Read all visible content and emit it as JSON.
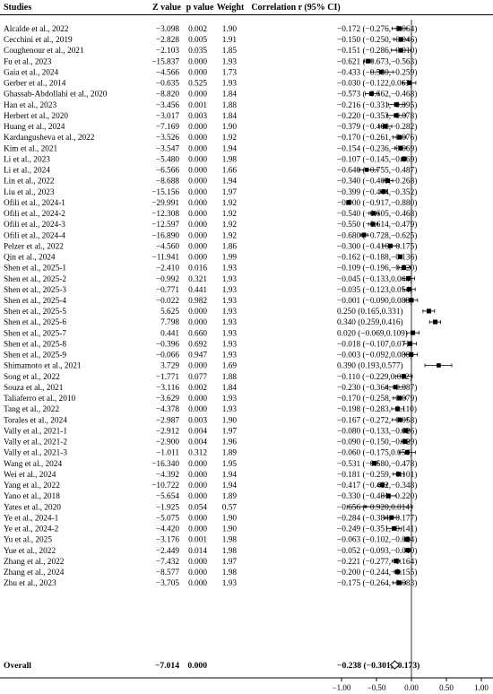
{
  "headers": {
    "studies": "Studies",
    "z": "Z value",
    "p": "p value",
    "weight": "Weight",
    "ci": "Correlation r (95% CI)"
  },
  "chart_data": {
    "type": "forest",
    "xlabel": "",
    "xlim": [
      -1.0,
      1.0
    ],
    "xticks": [
      "-1.00",
      "-0.50",
      "0.00",
      "0.50",
      "1.00"
    ],
    "xtick_values": [
      -1.0,
      -0.5,
      0.0,
      0.5,
      1.0
    ],
    "reference_line": 0,
    "grid": false,
    "studies": [
      {
        "name": "Alcalde et al., 2022",
        "z": "-3.098",
        "p": "0.002",
        "w": "1.90",
        "r": -0.172,
        "lo": -0.276,
        "hi": -0.064
      },
      {
        "name": "Cecchini et al., 2019",
        "z": "-2.828",
        "p": "0.005",
        "w": "1.91",
        "r": -0.15,
        "lo": -0.25,
        "hi": -0.046
      },
      {
        "name": "Coughenour et al., 2021",
        "z": "-2.103",
        "p": "0.035",
        "w": "1.85",
        "r": -0.151,
        "lo": -0.286,
        "hi": -0.01
      },
      {
        "name": "Fu et al., 2023",
        "z": "-15.837",
        "p": "0.000",
        "w": "1.93",
        "r": -0.621,
        "lo": -0.673,
        "hi": -0.563
      },
      {
        "name": "Gaia et al., 2024",
        "z": "-4.566",
        "p": "0.000",
        "w": "1.73",
        "r": -0.433,
        "lo": -0.58,
        "hi": -0.259
      },
      {
        "name": "Gerber et al., 2014",
        "z": "-0.635",
        "p": "0.525",
        "w": "1.93",
        "r": -0.03,
        "lo": -0.122,
        "hi": 0.063
      },
      {
        "name": "Ghassab-Abdollahi et al., 2020",
        "z": "-8.820",
        "p": "0.000",
        "w": "1.84",
        "r": -0.573,
        "lo": -0.662,
        "hi": -0.468
      },
      {
        "name": "Han et al., 2023",
        "z": "-3.456",
        "p": "0.001",
        "w": "1.88",
        "r": -0.216,
        "lo": -0.331,
        "hi": -0.095
      },
      {
        "name": "Herbert et al., 2020",
        "z": "-3.017",
        "p": "0.003",
        "w": "1.84",
        "r": -0.22,
        "lo": -0.353,
        "hi": -0.078
      },
      {
        "name": "Huang et al., 2024",
        "z": "-7.169",
        "p": "0.000",
        "w": "1.90",
        "r": -0.379,
        "lo": -0.468,
        "hi": -0.282
      },
      {
        "name": "Kardangusheva et al., 2022",
        "z": "-3.526",
        "p": "0.000",
        "w": "1.92",
        "r": -0.17,
        "lo": -0.261,
        "hi": -0.076
      },
      {
        "name": "Kim et al., 2021",
        "z": "-3.547",
        "p": "0.000",
        "w": "1.94",
        "r": -0.154,
        "lo": -0.236,
        "hi": -0.069
      },
      {
        "name": "Li et al., 2023",
        "z": "-5.480",
        "p": "0.000",
        "w": "1.98",
        "r": -0.107,
        "lo": -0.145,
        "hi": -0.069
      },
      {
        "name": "Li et al., 2024",
        "z": "-6.566",
        "p": "0.000",
        "w": "1.66",
        "r": -0.64,
        "lo": -0.755,
        "hi": -0.487
      },
      {
        "name": "Lin et al., 2022",
        "z": "-8.688",
        "p": "0.000",
        "w": "1.94",
        "r": -0.34,
        "lo": -0.409,
        "hi": -0.268
      },
      {
        "name": "Liu et al., 2023",
        "z": "-15.156",
        "p": "0.000",
        "w": "1.97",
        "r": -0.399,
        "lo": -0.444,
        "hi": -0.352
      },
      {
        "name": "Ofili et al., 2024-1",
        "z": "-29.991",
        "p": "0.000",
        "w": "1.92",
        "r": -0.9,
        "lo": -0.917,
        "hi": -0.88
      },
      {
        "name": "Ofili et al., 2024-2",
        "z": "-12.308",
        "p": "0.000",
        "w": "1.92",
        "r": -0.54,
        "lo": -0.605,
        "hi": -0.468
      },
      {
        "name": "Ofili et al., 2024-3",
        "z": "-12.597",
        "p": "0.000",
        "w": "1.92",
        "r": -0.55,
        "lo": -0.614,
        "hi": -0.479
      },
      {
        "name": "Ofili et al., 2024-4",
        "z": "-16.890",
        "p": "0.000",
        "w": "1.92",
        "r": -0.68,
        "lo": -0.728,
        "hi": -0.625
      },
      {
        "name": "Pelzer et al., 2022",
        "z": "-4.560",
        "p": "0.000",
        "w": "1.86",
        "r": -0.3,
        "lo": -0.416,
        "hi": -0.175
      },
      {
        "name": "Qin et al., 2024",
        "z": "-11.941",
        "p": "0.000",
        "w": "1.99",
        "r": -0.162,
        "lo": -0.188,
        "hi": -0.136
      },
      {
        "name": "Shen et al., 2025-1",
        "z": "-2.410",
        "p": "0.016",
        "w": "1.93",
        "r": -0.109,
        "lo": -0.196,
        "hi": -0.02
      },
      {
        "name": "Shen et al., 2025-2",
        "z": "-0.992",
        "p": "0.321",
        "w": "1.93",
        "r": -0.045,
        "lo": -0.133,
        "hi": 0.044
      },
      {
        "name": "Shen et al., 2025-3",
        "z": "-0.771",
        "p": "0.441",
        "w": "1.93",
        "r": -0.035,
        "lo": -0.123,
        "hi": 0.054
      },
      {
        "name": "Shen et al., 2025-4",
        "z": "-0.022",
        "p": "0.982",
        "w": "1.93",
        "r": -0.001,
        "lo": -0.09,
        "hi": 0.088
      },
      {
        "name": "Shen et al., 2025-5",
        "z": "5.625",
        "p": "0.000",
        "w": "1.93",
        "r": 0.25,
        "lo": 0.165,
        "hi": 0.331
      },
      {
        "name": "Shen et al., 2025-6",
        "z": "7.798",
        "p": "0.000",
        "w": "1.93",
        "r": 0.34,
        "lo": 0.259,
        "hi": 0.416
      },
      {
        "name": "Shen et al., 2025-7",
        "z": "0.441",
        "p": "0.660",
        "w": "1.93",
        "r": 0.02,
        "lo": -0.069,
        "hi": 0.109
      },
      {
        "name": "Shen et al., 2025-8",
        "z": "-0.396",
        "p": "0.692",
        "w": "1.93",
        "r": -0.018,
        "lo": -0.107,
        "hi": 0.071
      },
      {
        "name": "Shen et al., 2025-9",
        "z": "-0.066",
        "p": "0.947",
        "w": "1.93",
        "r": -0.003,
        "lo": -0.092,
        "hi": 0.086
      },
      {
        "name": "Shimamoto et al., 2021",
        "z": "3.729",
        "p": "0.000",
        "w": "1.69",
        "r": 0.39,
        "lo": 0.193,
        "hi": 0.577
      },
      {
        "name": "Song et al., 2022",
        "z": "-1.771",
        "p": "0.077",
        "w": "1.88",
        "r": -0.11,
        "lo": -0.229,
        "hi": 0.012
      },
      {
        "name": "Souza et al., 2021",
        "z": "-3.116",
        "p": "0.002",
        "w": "1.84",
        "r": -0.23,
        "lo": -0.364,
        "hi": -0.087
      },
      {
        "name": "Taliaferro et al., 2010",
        "z": "-3.629",
        "p": "0.000",
        "w": "1.93",
        "r": -0.17,
        "lo": -0.258,
        "hi": -0.079
      },
      {
        "name": "Tang et al., 2022",
        "z": "-4.378",
        "p": "0.000",
        "w": "1.93",
        "r": -0.198,
        "lo": -0.283,
        "hi": -0.11
      },
      {
        "name": "Torales et al., 2024",
        "z": "-2.987",
        "p": "0.003",
        "w": "1.90",
        "r": -0.167,
        "lo": -0.272,
        "hi": -0.058
      },
      {
        "name": "Vally et al., 2021-1",
        "z": "-2.912",
        "p": "0.004",
        "w": "1.97",
        "r": -0.08,
        "lo": -0.133,
        "hi": -0.026
      },
      {
        "name": "Vally et al., 2021-2",
        "z": "-2.900",
        "p": "0.004",
        "w": "1.96",
        "r": -0.09,
        "lo": -0.15,
        "hi": -0.029
      },
      {
        "name": "Vally et al., 2021-3",
        "z": "-1.011",
        "p": "0.312",
        "w": "1.89",
        "r": -0.06,
        "lo": -0.175,
        "hi": 0.056
      },
      {
        "name": "Wang et al., 2024",
        "z": "-16.340",
        "p": "0.000",
        "w": "1.95",
        "r": -0.531,
        "lo": -0.58,
        "hi": -0.478
      },
      {
        "name": "Wei et al., 2024",
        "z": "-4.392",
        "p": "0.000",
        "w": "1.94",
        "r": -0.181,
        "lo": -0.259,
        "hi": -0.101
      },
      {
        "name": "Yang et al., 2022",
        "z": "-10.722",
        "p": "0.000",
        "w": "1.94",
        "r": -0.417,
        "lo": -0.482,
        "hi": -0.348
      },
      {
        "name": "Yano et al., 2018",
        "z": "-5.654",
        "p": "0.000",
        "w": "1.89",
        "r": -0.33,
        "lo": -0.431,
        "hi": -0.22
      },
      {
        "name": "Yates et al., 2020",
        "z": "-1.925",
        "p": "0.054",
        "w": "0.57",
        "r": -0.656,
        "lo": -0.92,
        "hi": 0.014
      },
      {
        "name": "Ye et al., 2024-1",
        "z": "-5.075",
        "p": "0.000",
        "w": "1.90",
        "r": -0.284,
        "lo": -0.384,
        "hi": -0.177
      },
      {
        "name": "Ye et al., 2024-2",
        "z": "-4.420",
        "p": "0.000",
        "w": "1.90",
        "r": -0.249,
        "lo": -0.351,
        "hi": -0.141
      },
      {
        "name": "Yu et al., 2025",
        "z": "-3.176",
        "p": "0.001",
        "w": "1.98",
        "r": -0.063,
        "lo": -0.102,
        "hi": -0.024
      },
      {
        "name": "Yue et al., 2022",
        "z": "-2.449",
        "p": "0.014",
        "w": "1.98",
        "r": -0.052,
        "lo": -0.093,
        "hi": -0.01
      },
      {
        "name": "Zhang et al., 2022",
        "z": "-7.432",
        "p": "0.000",
        "w": "1.97",
        "r": -0.221,
        "lo": -0.277,
        "hi": -0.164
      },
      {
        "name": "Zhang et al., 2024",
        "z": "-8.577",
        "p": "0.000",
        "w": "1.98",
        "r": -0.2,
        "lo": -0.244,
        "hi": -0.155
      },
      {
        "name": "Zhu et al., 2023",
        "z": "-3.705",
        "p": "0.000",
        "w": "1.93",
        "r": -0.175,
        "lo": -0.264,
        "hi": -0.083
      }
    ],
    "overall": {
      "name": "Overall",
      "z": "-7.014",
      "p": "0.000",
      "w": "",
      "r": -0.238,
      "lo": -0.301,
      "hi": -0.173
    }
  }
}
